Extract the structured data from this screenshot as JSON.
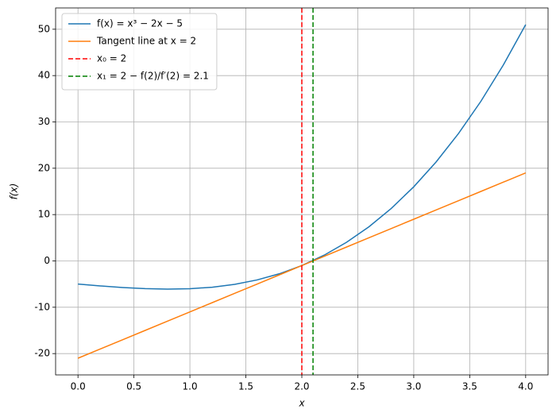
{
  "chart_data": {
    "type": "line",
    "xlabel": "x",
    "ylabel": "f(x)",
    "x": [
      0,
      0.2,
      0.4,
      0.6,
      0.8,
      1.0,
      1.2,
      1.4,
      1.6,
      1.8,
      2.0,
      2.2,
      2.4,
      2.6,
      2.8,
      3.0,
      3.2,
      3.4,
      3.6,
      3.8,
      4.0
    ],
    "series": [
      {
        "name": "f(x) = x³ − 2x − 5",
        "color": "#1f77b4",
        "values": [
          -5,
          -5.392,
          -5.736,
          -5.984,
          -6.088,
          -6,
          -5.672,
          -5.056,
          -4.104,
          -2.768,
          -1,
          1.248,
          4.024,
          7.376,
          11.352,
          16,
          21.368,
          27.504,
          34.456,
          42.272,
          51
        ]
      },
      {
        "name": "Tangent line at x = 2",
        "color": "#ff7f0e",
        "values": [
          -21,
          -19,
          -17,
          -15,
          -13,
          -11,
          -9,
          -7,
          -5,
          -3,
          -1,
          1,
          3,
          5,
          7,
          9,
          11,
          13,
          15,
          17,
          19
        ]
      }
    ],
    "vlines": [
      {
        "name": "x₀ = 2",
        "color": "#ff0000",
        "x": 2
      },
      {
        "name": "x₁ = 2 − f(2)/f′(2) = 2.1",
        "color": "#008000",
        "x": 2.1
      }
    ],
    "xlim": [
      -0.2,
      4.2
    ],
    "xticks": [
      {
        "value": 0,
        "label": "0.0"
      },
      0.5,
      {
        "value": 1,
        "label": "1.0"
      },
      1.5,
      {
        "value": 2,
        "label": "2.0"
      },
      2.5,
      {
        "value": 3,
        "label": "3.0"
      },
      3.5,
      {
        "value": 4,
        "label": "4.0"
      }
    ],
    "ylim": [
      -24.6,
      54.6
    ],
    "yticks": [
      -20,
      -10,
      0,
      10,
      20,
      30,
      40,
      50
    ],
    "grid": true,
    "legend": "upper left"
  }
}
